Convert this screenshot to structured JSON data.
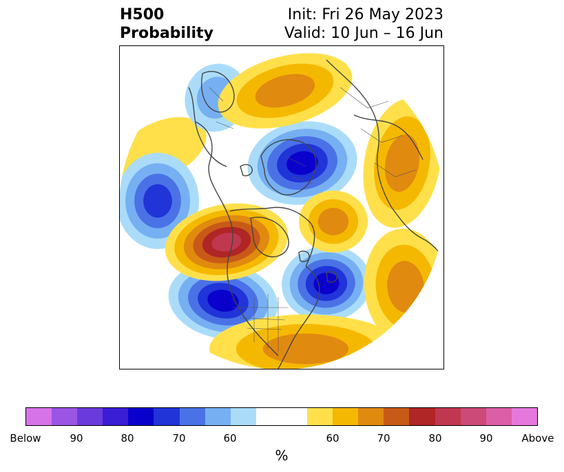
{
  "title": {
    "line1": "H500",
    "line2": "Probability",
    "init": "Init: Fri 26 May 2023",
    "valid": "Valid: 10 Jun – 16 Jun"
  },
  "colorbar": {
    "unit": "%",
    "colors": [
      "#d673e8",
      "#9a55e3",
      "#6a3bdc",
      "#3a1ed6",
      "#0a00cc",
      "#2034d8",
      "#4a72e6",
      "#76b0f2",
      "#aadcfa",
      "#ffffff",
      "#ffffff",
      "#ffe04a",
      "#f5b800",
      "#e08a10",
      "#c85a18",
      "#b02525",
      "#c03850",
      "#cc4a78",
      "#dc5ea6",
      "#e678dc"
    ],
    "ticks": [
      "Below",
      "90",
      "80",
      "70",
      "60",
      "60",
      "70",
      "80",
      "90",
      "Above"
    ]
  },
  "map": {
    "below_colors": [
      "#aadcfa",
      "#76b0f2",
      "#4a72e6",
      "#2034d8",
      "#0a00cc"
    ],
    "above_colors": [
      "#ffe04a",
      "#f5b800",
      "#e08a10",
      "#c85a18",
      "#b02525",
      "#c03850"
    ],
    "anomalies": [
      {
        "name": "greenland-arctic-low",
        "sign": "below",
        "level": 5
      },
      {
        "name": "siberia-low",
        "sign": "below",
        "level": 2
      },
      {
        "name": "north-pacific-low",
        "sign": "below",
        "level": 4
      },
      {
        "name": "northeast-pacific-low",
        "sign": "below",
        "level": 5
      },
      {
        "name": "north-atlantic-low",
        "sign": "below",
        "level": 5
      },
      {
        "name": "alaska-high",
        "sign": "above",
        "level": 6
      },
      {
        "name": "arctic-siberia-high",
        "sign": "above",
        "level": 3
      },
      {
        "name": "baffin-high",
        "sign": "above",
        "level": 3
      },
      {
        "name": "east-pacific-high",
        "sign": "above",
        "level": 3
      },
      {
        "name": "central-atlantic-high",
        "sign": "above",
        "level": 3
      },
      {
        "name": "us-high",
        "sign": "above",
        "level": 3
      }
    ]
  }
}
